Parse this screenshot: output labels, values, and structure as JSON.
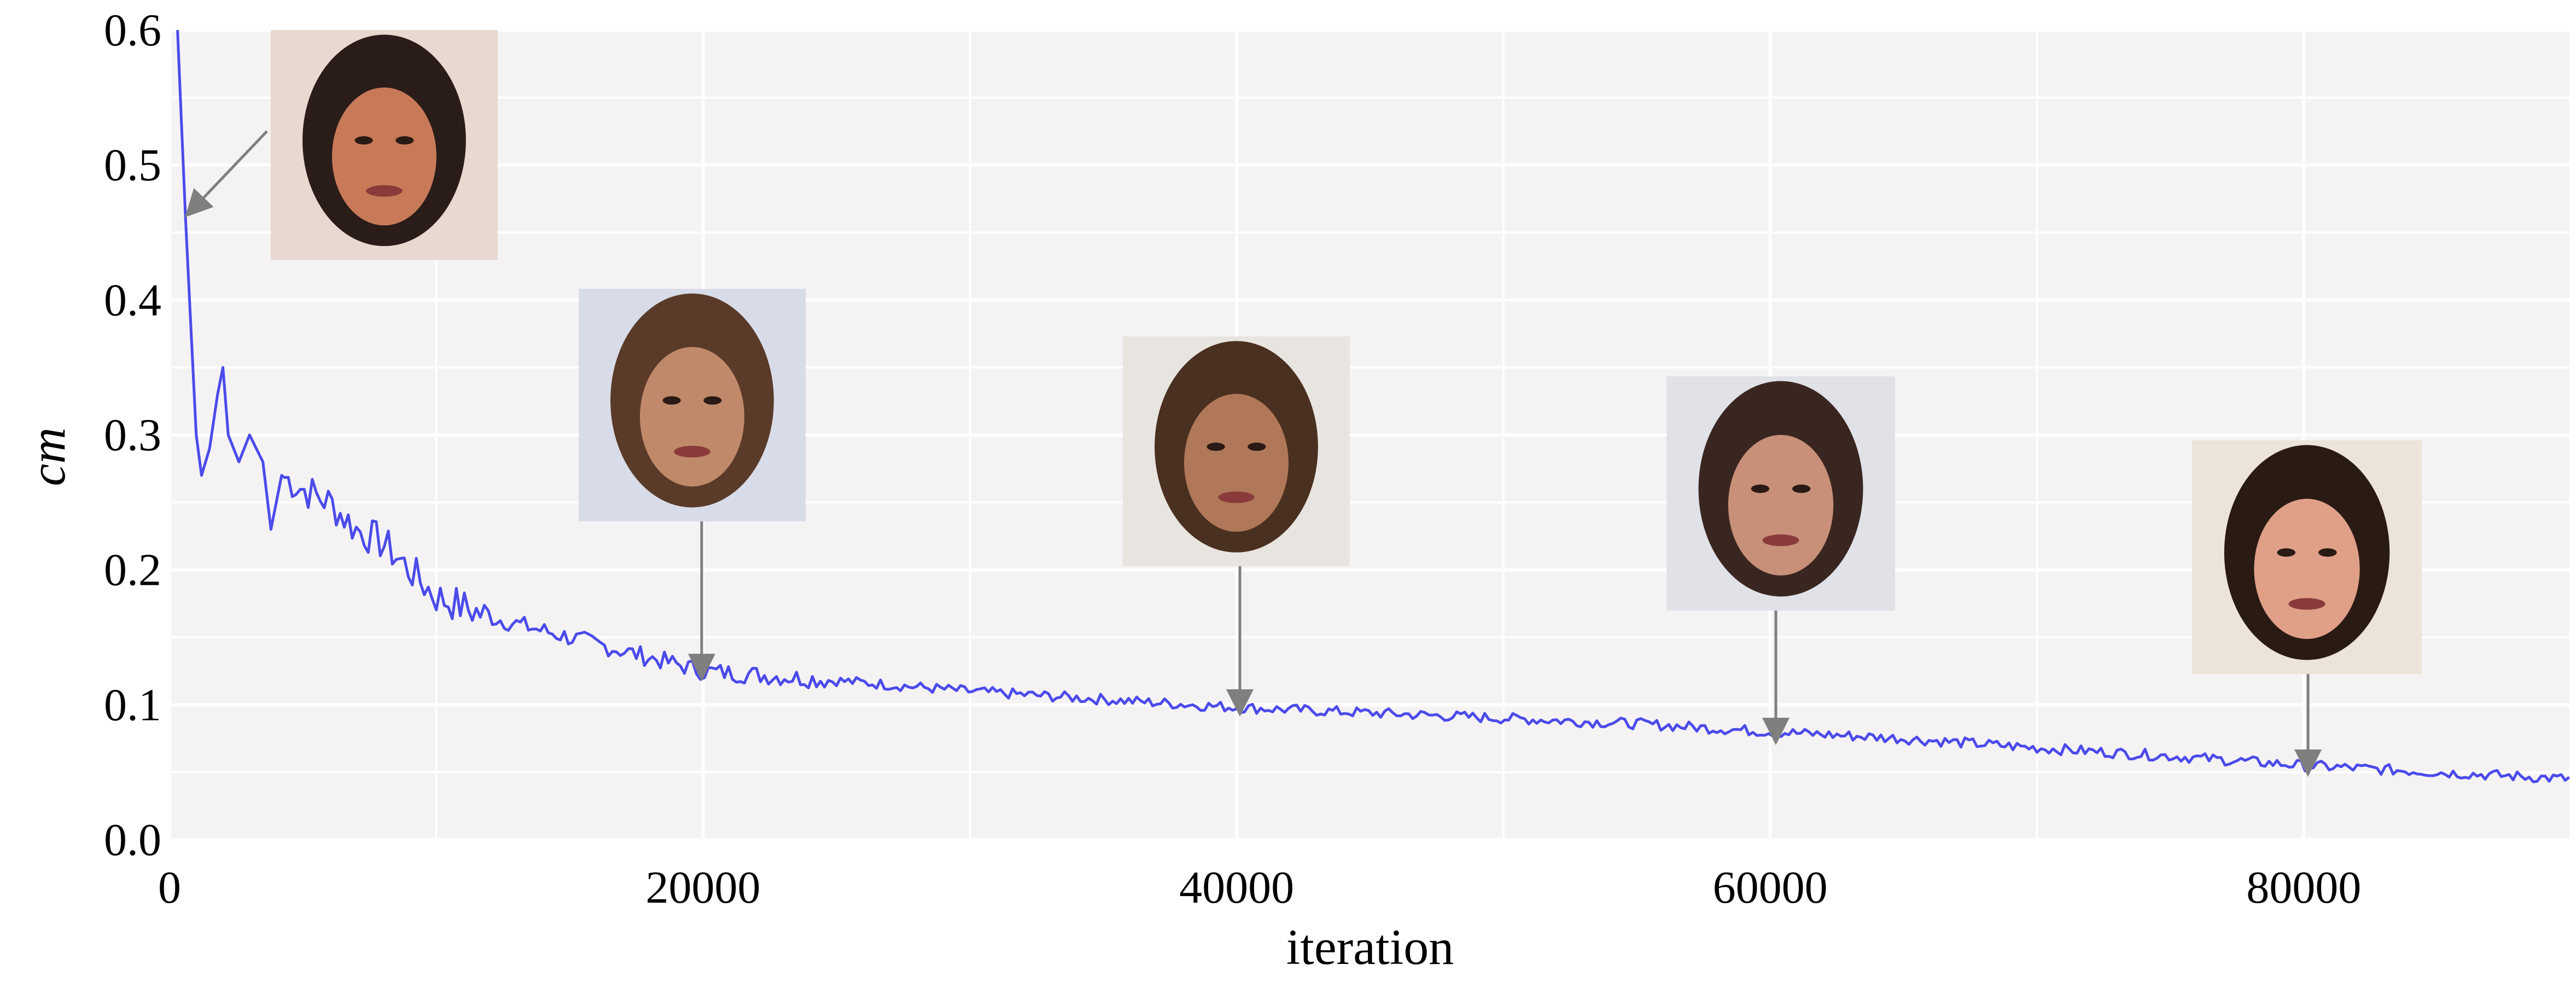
{
  "chart_data": {
    "type": "line",
    "title": "",
    "xlabel": "iteration",
    "ylabel": "cm",
    "xlim": [
      0,
      90000
    ],
    "ylim": [
      0.0,
      0.6
    ],
    "x_ticks": [
      0,
      20000,
      40000,
      60000,
      80000
    ],
    "x_tick_labels": [
      "0",
      "20000",
      "40000",
      "60000",
      "80000"
    ],
    "y_ticks": [
      0.0,
      0.1,
      0.2,
      0.3,
      0.4,
      0.5,
      0.6
    ],
    "y_tick_labels": [
      "0.0",
      "0.1",
      "0.2",
      "0.3",
      "0.4",
      "0.5",
      "0.6"
    ],
    "grid": true,
    "series": [
      {
        "color": "#4b4bea",
        "points": [
          [
            300,
            0.6
          ],
          [
            450,
            0.53
          ],
          [
            600,
            0.46
          ],
          [
            800,
            0.38
          ],
          [
            1000,
            0.3
          ],
          [
            1200,
            0.27
          ],
          [
            1500,
            0.29
          ],
          [
            1800,
            0.33
          ],
          [
            2000,
            0.35
          ],
          [
            2200,
            0.3
          ],
          [
            2600,
            0.28
          ],
          [
            3000,
            0.3
          ],
          [
            3500,
            0.28
          ],
          [
            3800,
            0.23
          ],
          [
            4200,
            0.27
          ],
          [
            5000,
            0.26
          ],
          [
            6000,
            0.25
          ],
          [
            7000,
            0.23
          ],
          [
            8000,
            0.22
          ],
          [
            9000,
            0.2
          ],
          [
            10000,
            0.18
          ],
          [
            12000,
            0.165
          ],
          [
            14000,
            0.155
          ],
          [
            16000,
            0.145
          ],
          [
            18000,
            0.135
          ],
          [
            20000,
            0.125
          ],
          [
            25000,
            0.118
          ],
          [
            30000,
            0.11
          ],
          [
            35000,
            0.104
          ],
          [
            40000,
            0.098
          ],
          [
            45000,
            0.094
          ],
          [
            50000,
            0.09
          ],
          [
            55000,
            0.086
          ],
          [
            60000,
            0.08
          ],
          [
            65000,
            0.075
          ],
          [
            70000,
            0.068
          ],
          [
            75000,
            0.062
          ],
          [
            80000,
            0.055
          ],
          [
            85000,
            0.05
          ],
          [
            90000,
            0.045
          ]
        ]
      }
    ],
    "annotations": [
      {
        "x": 800,
        "y": 0.47,
        "face_tone": "#c87a58",
        "hair_tone": "#2a1c18",
        "background": "#e8d8d0"
      },
      {
        "x": 20000,
        "y": 0.125,
        "face_tone": "#c08a6a",
        "hair_tone": "#5a3a28",
        "background": "#d8dce8"
      },
      {
        "x": 40000,
        "y": 0.098,
        "face_tone": "#b07858",
        "hair_tone": "#4a3020",
        "background": "#e8e4e0"
      },
      {
        "x": 60000,
        "y": 0.08,
        "face_tone": "#c89078",
        "hair_tone": "#3a2620",
        "background": "#e0e2e8"
      },
      {
        "x": 80000,
        "y": 0.055,
        "face_tone": "#e0a088",
        "hair_tone": "#2a1a14",
        "background": "#ece4d8"
      }
    ]
  }
}
